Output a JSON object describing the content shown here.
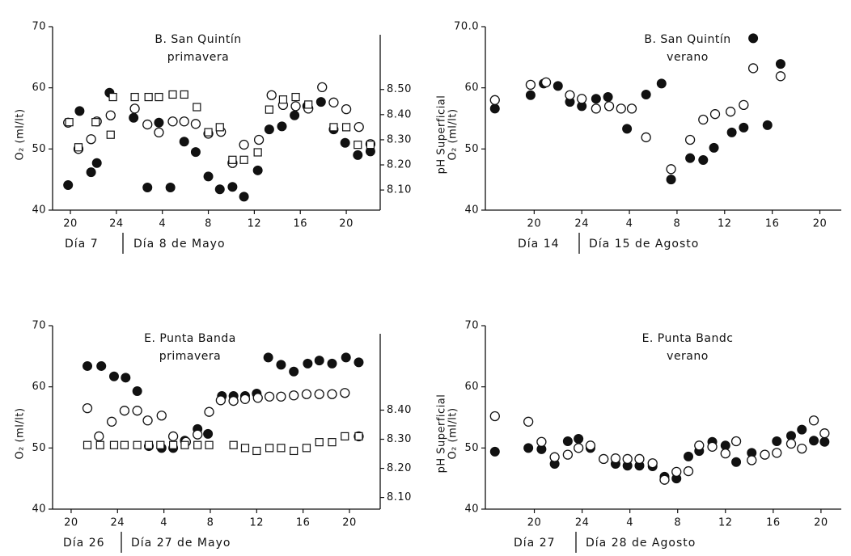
{
  "chart_data": [
    {
      "type": "scatter",
      "title": "B. San Quintín",
      "subtitle": "primavera",
      "day_labels": [
        "Día 7",
        "Día 8 de Mayo"
      ],
      "ylabel": "O₂ (ml/lt)",
      "y2label": "pH Superficial",
      "xlim": [
        18.45,
        46.95
      ],
      "xticks": [
        20,
        24,
        {
          "value": 28,
          "label": "4"
        },
        {
          "value": 32,
          "label": "8"
        },
        {
          "value": 36,
          "label": "12"
        },
        {
          "value": 40,
          "label": "16"
        },
        {
          "value": 44,
          "label": "20"
        }
      ],
      "ylim": [
        40,
        70
      ],
      "yticks": [
        40,
        50,
        60,
        70
      ],
      "y2lim": [
        8.02,
        8.75
      ],
      "y2ticks": [
        {
          "value": 8.1,
          "label": "8.10"
        },
        {
          "value": 8.2,
          "label": "8.20"
        },
        {
          "value": 8.3,
          "label": "8.30"
        },
        {
          "value": 8.4,
          "label": "8.40"
        },
        {
          "value": 8.5,
          "label": "8.50"
        }
      ],
      "series": [
        {
          "marker": "filled-circle",
          "color": "#111111",
          "x": [
            19.8,
            20.8,
            21.8,
            22.3,
            23.4,
            25.5,
            26.7,
            27.7,
            28.7,
            29.9,
            30.9,
            32.0,
            33.0,
            34.1,
            35.1,
            36.3,
            37.3,
            38.4,
            39.5,
            40.6,
            41.8,
            42.9,
            43.9,
            45.0,
            46.1
          ],
          "values": [
            44.1,
            56.2,
            46.2,
            47.7,
            59.2,
            55.1,
            43.7,
            54.3,
            43.7,
            51.2,
            49.5,
            45.5,
            43.4,
            43.8,
            42.2,
            46.5,
            53.2,
            53.7,
            55.5,
            57.0,
            57.7,
            53.2,
            51.0,
            49.0,
            49.6
          ]
        },
        {
          "marker": "open-circle",
          "color": "#111111",
          "x": [
            19.8,
            20.7,
            21.8,
            22.3,
            23.5,
            25.6,
            26.7,
            27.7,
            28.9,
            29.9,
            30.9,
            32.0,
            33.1,
            34.1,
            35.1,
            36.4,
            37.5,
            38.5,
            39.6,
            40.7,
            41.9,
            42.9,
            44.0,
            45.1,
            46.1
          ],
          "values": [
            54.3,
            50.0,
            51.6,
            54.5,
            55.5,
            56.6,
            54.0,
            52.7,
            54.5,
            54.5,
            54.1,
            52.5,
            52.8,
            47.7,
            50.7,
            51.5,
            58.8,
            57.2,
            57.0,
            56.6,
            60.1,
            57.6,
            56.5,
            53.6,
            50.8
          ]
        },
        {
          "marker": "open-square",
          "color": "#111111",
          "axis": "y2",
          "x": [
            19.9,
            20.7,
            22.2,
            23.5,
            23.7,
            25.6,
            26.8,
            27.7,
            28.9,
            29.9,
            31.0,
            32.0,
            33.0,
            34.1,
            35.1,
            36.3,
            37.3,
            38.5,
            39.6,
            40.7,
            42.9,
            44.0,
            45.0,
            46.1
          ],
          "values": [
            8.37,
            8.27,
            8.37,
            8.32,
            8.47,
            8.47,
            8.47,
            8.47,
            8.48,
            8.48,
            8.43,
            8.33,
            8.35,
            8.22,
            8.22,
            8.25,
            8.42,
            8.46,
            8.47,
            8.44,
            8.35,
            8.35,
            8.28,
            8.28
          ]
        }
      ]
    },
    {
      "type": "scatter",
      "title": "B. San Quintín",
      "subtitle": "verano",
      "day_labels": [
        "Día 14",
        "Día 15 de Agosto"
      ],
      "ylabel": "O₂ (ml/lt)",
      "xlim": [
        15.9,
        45.8
      ],
      "xticks": [
        20,
        24,
        {
          "value": 28,
          "label": "4"
        },
        {
          "value": 32,
          "label": "8"
        },
        {
          "value": 36,
          "label": "12"
        },
        {
          "value": 40,
          "label": "16"
        },
        {
          "value": 44,
          "label": "20"
        }
      ],
      "ylim": [
        40,
        70
      ],
      "yticks": [
        40,
        50,
        60,
        {
          "value": 70,
          "label": "70.0"
        }
      ],
      "series": [
        {
          "marker": "filled-circle",
          "color": "#111111",
          "x": [
            16.7,
            19.7,
            20.8,
            22.0,
            23.0,
            24.0,
            25.2,
            26.2,
            27.8,
            29.4,
            30.7,
            31.5,
            33.1,
            34.2,
            35.1,
            36.6,
            37.6,
            38.4,
            39.6,
            40.7
          ],
          "values": [
            56.6,
            58.8,
            60.7,
            60.3,
            57.7,
            57.0,
            58.2,
            58.5,
            53.3,
            58.9,
            60.7,
            45.0,
            48.5,
            48.2,
            50.2,
            52.7,
            53.5,
            68.1,
            53.9,
            63.9
          ]
        },
        {
          "marker": "open-circle",
          "color": "#111111",
          "x": [
            16.7,
            19.7,
            21.0,
            23.0,
            24.0,
            25.2,
            26.3,
            27.3,
            28.2,
            29.4,
            31.5,
            33.1,
            34.2,
            35.2,
            36.5,
            37.6,
            38.4,
            40.7
          ],
          "values": [
            58.0,
            60.5,
            60.9,
            58.8,
            58.2,
            56.6,
            57.0,
            56.6,
            56.6,
            51.9,
            46.7,
            51.5,
            54.8,
            55.7,
            56.1,
            57.2,
            63.2,
            61.9
          ]
        }
      ]
    },
    {
      "type": "scatter",
      "title": "E. Punta Banda",
      "subtitle": "primavera",
      "day_labels": [
        "Día 26",
        "Día 27 de Mayo"
      ],
      "ylabel": "O₂ (ml/lt)",
      "y2label": "pH Superficial",
      "xlim": [
        18.4,
        46.65
      ],
      "xticks": [
        20,
        24,
        {
          "value": 28,
          "label": "4"
        },
        {
          "value": 32,
          "label": "8"
        },
        {
          "value": 36,
          "label": "12"
        },
        {
          "value": 40,
          "label": "16"
        },
        {
          "value": 44,
          "label": "20"
        }
      ],
      "ylim": [
        40,
        70
      ],
      "yticks": [
        40,
        50,
        60,
        70
      ],
      "y2lim": [
        8.06,
        8.69
      ],
      "y2ticks": [
        {
          "value": 8.1,
          "label": "8.10"
        },
        {
          "value": 8.2,
          "label": "8.20"
        },
        {
          "value": 8.3,
          "label": "8.30"
        },
        {
          "value": 8.4,
          "label": "8.40"
        }
      ],
      "series": [
        {
          "marker": "filled-circle",
          "color": "#111111",
          "x": [
            21.4,
            22.6,
            23.7,
            24.7,
            25.7,
            26.7,
            27.8,
            28.8,
            29.8,
            30.9,
            31.8,
            33.0,
            34.0,
            35.0,
            36.0,
            37.0,
            38.1,
            39.2,
            40.4,
            41.4,
            42.5,
            43.7,
            44.8
          ],
          "values": [
            63.4,
            63.4,
            61.7,
            61.5,
            59.3,
            50.3,
            50.0,
            50.0,
            51.2,
            53.1,
            52.3,
            58.5,
            58.5,
            58.5,
            58.9,
            64.8,
            63.6,
            62.5,
            63.8,
            64.3,
            63.8,
            64.8,
            64.0
          ]
        },
        {
          "marker": "open-circle",
          "color": "#111111",
          "x": [
            21.4,
            22.4,
            23.5,
            24.6,
            25.7,
            26.6,
            27.8,
            28.8,
            29.9,
            30.9,
            31.9,
            32.9,
            34.0,
            35.0,
            36.1,
            37.1,
            38.1,
            39.2,
            40.3,
            41.4,
            42.5,
            43.6,
            44.8
          ],
          "values": [
            56.5,
            51.9,
            54.3,
            56.1,
            56.1,
            54.5,
            55.3,
            51.9,
            51.0,
            52.2,
            55.9,
            57.8,
            57.7,
            58.0,
            58.2,
            58.4,
            58.4,
            58.6,
            58.8,
            58.8,
            58.8,
            59.0,
            51.9
          ]
        },
        {
          "marker": "open-square",
          "color": "#111111",
          "axis": "y2",
          "x": [
            21.4,
            22.5,
            23.7,
            24.6,
            25.7,
            26.7,
            27.7,
            28.8,
            29.8,
            30.9,
            31.9,
            34.0,
            35.0,
            36.0,
            37.1,
            38.1,
            39.2,
            40.3,
            41.4,
            42.5,
            43.6,
            44.8
          ],
          "values": [
            8.28,
            8.28,
            8.28,
            8.28,
            8.28,
            8.28,
            8.28,
            8.28,
            8.28,
            8.28,
            8.28,
            8.28,
            8.27,
            8.26,
            8.27,
            8.27,
            8.26,
            8.27,
            8.29,
            8.29,
            8.31,
            8.31
          ]
        }
      ]
    },
    {
      "type": "scatter",
      "title": "E. Punta Bandc",
      "subtitle": "verano",
      "day_labels": [
        "Día 27",
        "Día 28 de Agosto"
      ],
      "ylabel": "O₂ (ml/lt)",
      "xlim": [
        15.9,
        45.7
      ],
      "xticks": [
        20,
        24,
        {
          "value": 28,
          "label": "4"
        },
        {
          "value": 32,
          "label": "8"
        },
        {
          "value": 36,
          "label": "12"
        },
        {
          "value": 40,
          "label": "16"
        },
        {
          "value": 44,
          "label": "20"
        }
      ],
      "ylim": [
        40,
        70
      ],
      "yticks": [
        40,
        50,
        60,
        70
      ],
      "series": [
        {
          "marker": "filled-circle",
          "color": "#111111",
          "x": [
            16.7,
            19.5,
            20.6,
            21.7,
            22.8,
            23.7,
            24.7,
            25.8,
            26.8,
            27.8,
            28.8,
            29.9,
            30.9,
            31.9,
            32.9,
            33.8,
            34.9,
            36.0,
            36.9,
            38.2,
            39.3,
            40.3,
            41.5,
            42.4,
            43.4,
            44.3
          ],
          "values": [
            49.4,
            50.0,
            49.8,
            47.4,
            51.1,
            51.5,
            50.0,
            48.2,
            47.4,
            47.1,
            47.1,
            47.0,
            45.3,
            45.0,
            48.6,
            49.5,
            51.0,
            50.4,
            47.7,
            49.2,
            48.9,
            51.1,
            52.0,
            53.0,
            51.2,
            51.0
          ]
        },
        {
          "marker": "open-circle",
          "color": "#111111",
          "x": [
            16.7,
            19.5,
            20.6,
            21.7,
            22.8,
            23.7,
            24.7,
            25.8,
            26.8,
            27.8,
            28.8,
            29.9,
            30.9,
            31.9,
            32.9,
            33.8,
            34.9,
            36.0,
            36.9,
            38.2,
            39.3,
            40.3,
            41.5,
            42.4,
            43.4,
            44.3
          ],
          "values": [
            55.2,
            54.3,
            51.0,
            48.5,
            48.9,
            50.0,
            50.4,
            48.2,
            48.3,
            48.2,
            48.2,
            47.5,
            44.8,
            46.1,
            46.2,
            50.4,
            50.2,
            49.1,
            51.1,
            48.0,
            48.9,
            49.2,
            50.7,
            49.9,
            54.5,
            52.4
          ]
        }
      ]
    }
  ]
}
